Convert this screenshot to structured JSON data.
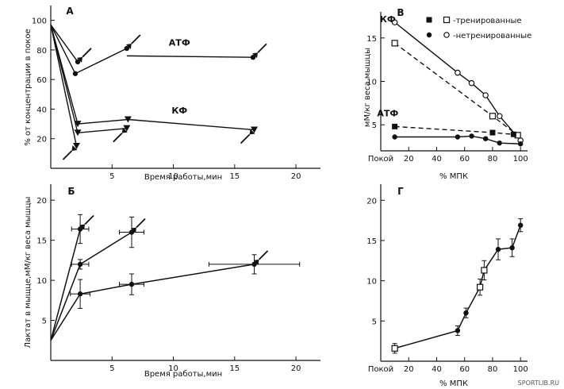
{
  "source_mark": "SPORTLIB.RU",
  "chart_data": [
    {
      "panel": "A",
      "type": "line",
      "panel_label": "А",
      "xlabel": "Время работы,мин",
      "ylabel": "% от концентрации в покое",
      "xlim": [
        0,
        22
      ],
      "ylim": [
        0,
        110
      ],
      "xticks": [
        0,
        5,
        10,
        15,
        20
      ],
      "xtick_labels": [
        "",
        "5",
        "10",
        "15",
        "20"
      ],
      "yticks": [
        0,
        20,
        40,
        60,
        80,
        100
      ],
      "ytick_labels": [
        "",
        "20",
        "40",
        "60",
        "80",
        "100"
      ],
      "annotations": [
        {
          "text": "АТФ",
          "x": 10.5,
          "y": 83
        },
        {
          "text": "КФ",
          "x": 10.5,
          "y": 37
        }
      ],
      "series": [
        {
          "name": "АТФ 1",
          "marker": "circle",
          "x": [
            0,
            2.2
          ],
          "y": [
            97,
            72
          ]
        },
        {
          "name": "АТФ 2",
          "marker": "circle",
          "x": [
            0,
            2.0,
            6.2
          ],
          "y": [
            97,
            64,
            81
          ]
        },
        {
          "name": "АТФ 3",
          "marker": "circle",
          "x": [
            6.2,
            16.5
          ],
          "y": [
            76,
            75
          ]
        },
        {
          "name": "КФ 1",
          "marker": "triangle",
          "x": [
            0,
            2.1
          ],
          "y": [
            97,
            15
          ]
        },
        {
          "name": "КФ 2",
          "marker": "triangle",
          "x": [
            0,
            2.2,
            6.2
          ],
          "y": [
            97,
            24,
            27
          ]
        },
        {
          "name": "КФ 3",
          "marker": "triangle",
          "x": [
            0,
            2.2,
            6.3,
            16.6
          ],
          "y": [
            97,
            30,
            33,
            26
          ]
        }
      ],
      "arrows": [
        {
          "x": 2.2,
          "y": 72,
          "dir": "up-right"
        },
        {
          "x": 6.2,
          "y": 81,
          "dir": "up-right"
        },
        {
          "x": 16.5,
          "y": 75,
          "dir": "up-right"
        },
        {
          "x": 2.1,
          "y": 15,
          "dir": "down-left"
        },
        {
          "x": 6.2,
          "y": 27,
          "dir": "down-left"
        },
        {
          "x": 16.6,
          "y": 26,
          "dir": "down-left"
        }
      ]
    },
    {
      "panel": "B",
      "type": "line",
      "panel_label": "В",
      "xlabel": "% МПК",
      "ylabel": "мМ/кг веса мышцы",
      "xlim": [
        0,
        105
      ],
      "ylim": [
        2,
        18
      ],
      "xticks": [
        0,
        20,
        40,
        60,
        80,
        100
      ],
      "xtick_labels": [
        "Покой",
        "20",
        "40",
        "60",
        "80",
        "100"
      ],
      "yticks": [
        5,
        10,
        15
      ],
      "ytick_labels": [
        "5",
        "10",
        "15"
      ],
      "legend": [
        {
          "marker": "filled-square",
          "text": ""
        },
        {
          "marker": "open-square",
          "text": "-тренированные"
        },
        {
          "marker": "filled-circle",
          "text": ""
        },
        {
          "marker": "open-circle",
          "text": "-нетренированные"
        }
      ],
      "annotations": [
        {
          "text": "КФ",
          "x": 5,
          "y": 16.8
        },
        {
          "text": "АТФ",
          "x": 5,
          "y": 6.0
        }
      ],
      "series": [
        {
          "name": "КФ нетренированные",
          "marker": "open-circle",
          "dash": false,
          "x": [
            10,
            55,
            65,
            75,
            85,
            100
          ],
          "y": [
            16.8,
            11.0,
            9.8,
            8.4,
            6.0,
            3.2
          ]
        },
        {
          "name": "КФ тренированные",
          "marker": "open-square",
          "dash": true,
          "x": [
            10,
            80,
            98
          ],
          "y": [
            14.4,
            6.0,
            3.8
          ]
        },
        {
          "name": "АТФ тренированные",
          "marker": "filled-square",
          "dash": true,
          "x": [
            10,
            80,
            95
          ],
          "y": [
            4.8,
            4.1,
            3.9
          ]
        },
        {
          "name": "АТФ нетренированные",
          "marker": "filled-circle",
          "dash": false,
          "x": [
            10,
            55,
            65,
            75,
            85,
            100
          ],
          "y": [
            3.6,
            3.6,
            3.7,
            3.4,
            2.9,
            2.8
          ]
        }
      ]
    },
    {
      "panel": "C",
      "type": "scatter",
      "panel_label": "Б",
      "xlabel": "Время работы,мин",
      "ylabel": "Лактат в мыщце,мМ/кг веса мышцы",
      "xlim": [
        0,
        22
      ],
      "ylim": [
        0,
        22
      ],
      "xticks": [
        0,
        5,
        10,
        15,
        20
      ],
      "xtick_labels": [
        "",
        "5",
        "10",
        "15",
        "20"
      ],
      "yticks": [
        0,
        5,
        10,
        15,
        20
      ],
      "ytick_labels": [
        "",
        "5",
        "10",
        "15",
        "20"
      ],
      "series": [
        {
          "name": "Б 1",
          "x": [
            0,
            2.4
          ],
          "y": [
            2.5,
            16.4
          ]
        },
        {
          "name": "Б 2",
          "x": [
            0,
            2.4,
            6.6
          ],
          "y": [
            2.5,
            12.0,
            16.0
          ]
        },
        {
          "name": "Б 3",
          "x": [
            0,
            2.4,
            6.6,
            16.6
          ],
          "y": [
            2.5,
            8.3,
            9.5,
            12.0
          ]
        }
      ],
      "points": [
        {
          "x": 2.4,
          "y": 16.4,
          "xerr": 0.7,
          "yerr": 1.8
        },
        {
          "x": 2.4,
          "y": 12.0,
          "xerr": 0.7,
          "yerr": 0.6
        },
        {
          "x": 2.4,
          "y": 8.3,
          "xerr": 0.8,
          "yerr": 1.8
        },
        {
          "x": 6.6,
          "y": 16.0,
          "xerr": 1.0,
          "yerr": 1.9
        },
        {
          "x": 6.6,
          "y": 9.5,
          "xerr": 1.0,
          "yerr": 1.3
        },
        {
          "x": 16.6,
          "y": 12.0,
          "xerr": 3.7,
          "yerr": 1.2
        }
      ],
      "arrows": [
        {
          "x": 2.4,
          "y": 16.4
        },
        {
          "x": 6.6,
          "y": 16.0
        },
        {
          "x": 16.6,
          "y": 12.0
        }
      ]
    },
    {
      "panel": "D",
      "type": "line",
      "panel_label": "Г",
      "xlabel": "% МПК",
      "ylabel": "",
      "xlim": [
        0,
        105
      ],
      "ylim": [
        0,
        22
      ],
      "xticks": [
        0,
        20,
        40,
        60,
        80,
        100
      ],
      "xtick_labels": [
        "Покой",
        "20",
        "40",
        "60",
        "80",
        "100"
      ],
      "yticks": [
        0,
        5,
        10,
        15,
        20
      ],
      "ytick_labels": [
        "",
        "5",
        "10",
        "15",
        "20"
      ],
      "series": [
        {
          "name": "Г",
          "x": [
            10,
            55,
            61,
            71,
            74,
            84,
            94,
            100
          ],
          "y": [
            1.6,
            3.8,
            6.0,
            9.2,
            11.3,
            13.9,
            14.1,
            16.9
          ]
        }
      ],
      "points": [
        {
          "x": 10,
          "y": 1.6,
          "yerr": 0.6,
          "marker": "open-square"
        },
        {
          "x": 55,
          "y": 3.8,
          "yerr": 0.6,
          "marker": "filled-circle"
        },
        {
          "x": 61,
          "y": 6.0,
          "yerr": 0.6,
          "marker": "filled-circle"
        },
        {
          "x": 71,
          "y": 9.2,
          "yerr": 1.0,
          "marker": "open-square"
        },
        {
          "x": 74,
          "y": 11.3,
          "yerr": 1.2,
          "marker": "open-square"
        },
        {
          "x": 84,
          "y": 13.9,
          "yerr": 1.3,
          "marker": "filled-circle"
        },
        {
          "x": 94,
          "y": 14.1,
          "yerr": 1.1,
          "marker": "filled-circle"
        },
        {
          "x": 100,
          "y": 16.9,
          "yerr": 0.8,
          "marker": "filled-circle"
        }
      ]
    }
  ]
}
